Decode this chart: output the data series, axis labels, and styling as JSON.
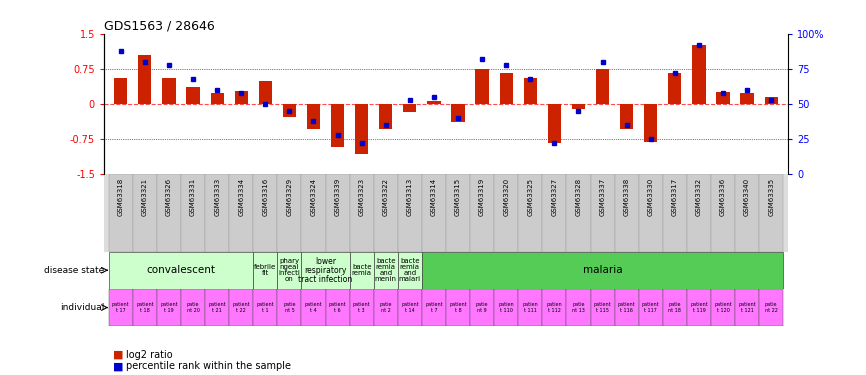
{
  "title": "GDS1563 / 28646",
  "samples": [
    "GSM63318",
    "GSM63321",
    "GSM63326",
    "GSM63331",
    "GSM63333",
    "GSM63334",
    "GSM63316",
    "GSM63329",
    "GSM63324",
    "GSM63339",
    "GSM63323",
    "GSM63322",
    "GSM63313",
    "GSM63314",
    "GSM63315",
    "GSM63319",
    "GSM63320",
    "GSM63325",
    "GSM63327",
    "GSM63328",
    "GSM63337",
    "GSM63338",
    "GSM63330",
    "GSM63317",
    "GSM63332",
    "GSM63336",
    "GSM63340",
    "GSM63335"
  ],
  "log2_ratio": [
    0.55,
    1.05,
    0.55,
    0.35,
    0.22,
    0.27,
    0.48,
    -0.28,
    -0.55,
    -0.92,
    -1.07,
    -0.55,
    -0.18,
    0.05,
    -0.38,
    0.75,
    0.65,
    0.55,
    -0.85,
    -0.12,
    0.75,
    -0.55,
    -0.82,
    0.65,
    1.25,
    0.25,
    0.22,
    0.15
  ],
  "percentile": [
    88,
    80,
    78,
    68,
    60,
    58,
    50,
    45,
    38,
    28,
    22,
    35,
    53,
    55,
    40,
    82,
    78,
    68,
    22,
    45,
    80,
    35,
    25,
    72,
    92,
    58,
    60,
    53
  ],
  "disease_groups": [
    {
      "label": "convalescent",
      "start": 0,
      "end": 6,
      "color": "#ccffcc"
    },
    {
      "label": "febrile\nfit",
      "start": 6,
      "end": 7,
      "color": "#ccffcc"
    },
    {
      "label": "phary\nngeal\ninfecti\non",
      "start": 7,
      "end": 8,
      "color": "#ccffcc"
    },
    {
      "label": "lower\nrespiratory\ntract infection",
      "start": 8,
      "end": 10,
      "color": "#ccffcc"
    },
    {
      "label": "bacte\nremia",
      "start": 10,
      "end": 11,
      "color": "#ccffcc"
    },
    {
      "label": "bacte\nremia\nand\nmenin",
      "start": 11,
      "end": 12,
      "color": "#ccffcc"
    },
    {
      "label": "bacte\nremia\nand\nmalari",
      "start": 12,
      "end": 13,
      "color": "#ccffcc"
    },
    {
      "label": "malaria",
      "start": 13,
      "end": 28,
      "color": "#55cc55"
    }
  ],
  "individual_labels_top": [
    "patient",
    "patient",
    "patient",
    "patie",
    "patient",
    "patient",
    "patient",
    "patie",
    "patient",
    "patient",
    "patient",
    "patie",
    "patient",
    "patient",
    "patient",
    "patie",
    "patien",
    "patien",
    "patien",
    "patie",
    "patient",
    "patient",
    "patient",
    "patie",
    "patient",
    "patient",
    "patient",
    "patie"
  ],
  "individual_labels_bot": [
    "t 17",
    "t 18",
    "t 19",
    "nt 20",
    "t 21",
    "t 22",
    "t 1",
    "nt 5",
    "t 4",
    "t 6",
    "t 3",
    "nt 2",
    "t 14",
    "t 7",
    "t 8",
    "nt 9",
    "t 110",
    "t 111",
    "t 112",
    "nt 13",
    "t 115",
    "t 116",
    "t 117",
    "nt 18",
    "t 119",
    "t 120",
    "t 121",
    "nt 22"
  ],
  "ylim": [
    -1.5,
    1.5
  ],
  "y_left_ticks": [
    -1.5,
    -0.75,
    0,
    0.75,
    1.5
  ],
  "y_right_ticks": [
    0,
    25,
    50,
    75,
    100
  ],
  "y_right_labels": [
    "0",
    "25",
    "50",
    "75",
    "100%"
  ],
  "bar_color": "#cc2200",
  "dot_color": "#0000cc",
  "individual_bg": "#ff77ff",
  "xlabels_bg": "#dddddd",
  "disease_state_label": "disease state",
  "individual_label": "individual",
  "legend_bar": "log2 ratio",
  "legend_dot": "percentile rank within the sample"
}
